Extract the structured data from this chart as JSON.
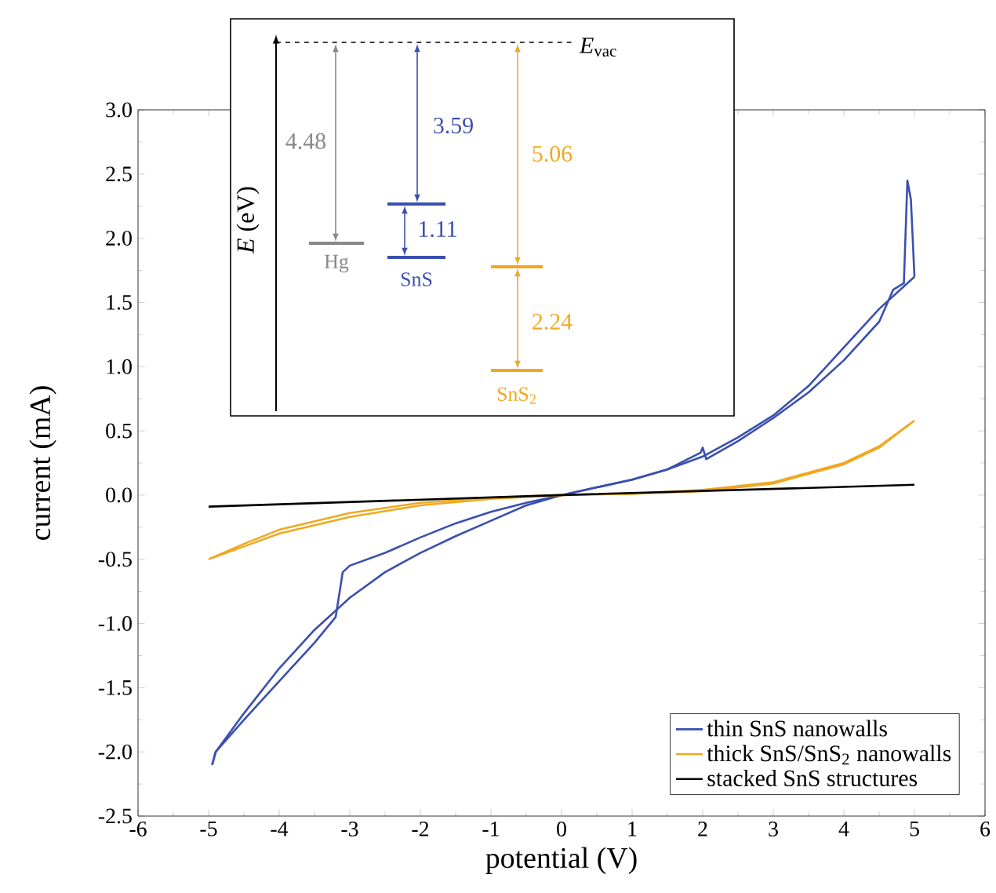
{
  "chart_data": [
    {
      "type": "line",
      "xlabel": "potential (V)",
      "ylabel": "current (mA)",
      "xlim": [
        -6,
        6
      ],
      "xticks": [
        -6,
        -5,
        -4,
        -3,
        -2,
        -1,
        0,
        1,
        2,
        3,
        4,
        5,
        6
      ],
      "ylim": [
        -2.5,
        3.0
      ],
      "yticks": [
        {
          "value": -2.5,
          "label": "-2.5"
        },
        {
          "value": -2.0,
          "label": "-2.0"
        },
        {
          "value": -1.5,
          "label": "-1.5"
        },
        {
          "value": -1.0,
          "label": "-1.0"
        },
        {
          "value": -0.5,
          "label": "-0.5"
        },
        {
          "value": 0,
          "label": "0.0"
        },
        {
          "value": 0.5,
          "label": "0.5"
        },
        {
          "value": 1.0,
          "label": "1.0"
        },
        {
          "value": 1.5,
          "label": "1.5"
        },
        {
          "value": 2.0,
          "label": "2.0"
        },
        {
          "value": 2.5,
          "label": "2.5"
        },
        {
          "value": 3.0,
          "label": "3.0"
        }
      ],
      "legend": "bottom right",
      "series": [
        {
          "name": "thin SnS nanowalls",
          "color": "#3a4fb0",
          "x": [
            -4.95,
            -4.9,
            -4.5,
            -4,
            -3.5,
            -3.2,
            -3.1,
            -3,
            -2.5,
            -2,
            -1.5,
            -1,
            -0.5,
            0,
            0.5,
            1,
            1.5,
            1.97,
            2,
            2.05,
            2.5,
            3,
            3.5,
            4,
            4.5,
            4.7,
            4.85,
            4.9,
            4.95,
            5
          ],
          "values": [
            -2.1,
            -2.0,
            -1.75,
            -1.45,
            -1.15,
            -0.95,
            -0.6,
            -0.55,
            -0.45,
            -0.33,
            -0.22,
            -0.13,
            -0.06,
            0,
            0.06,
            0.12,
            0.2,
            0.33,
            0.37,
            0.28,
            0.42,
            0.6,
            0.8,
            1.05,
            1.35,
            1.6,
            1.65,
            2.45,
            2.3,
            1.7
          ]
        },
        {
          "color": "#3a4fb0",
          "x": [
            -4.95,
            -4.9,
            -4.5,
            -4,
            -3.5,
            -3,
            -2.5,
            -2,
            -1.5,
            -1,
            -0.5,
            0,
            0.5,
            1,
            1.5,
            2,
            2.5,
            3,
            3.5,
            4,
            4.5,
            5
          ],
          "values": [
            -2.1,
            -2.0,
            -1.7,
            -1.35,
            -1.05,
            -0.8,
            -0.6,
            -0.45,
            -0.32,
            -0.2,
            -0.08,
            0,
            0.06,
            0.12,
            0.2,
            0.3,
            0.45,
            0.62,
            0.85,
            1.15,
            1.45,
            1.7
          ]
        },
        {
          "name": "thick SnS/SnS$_{2}$ nanowalls",
          "color": "#f0a820",
          "x": [
            -5,
            -4.5,
            -4,
            -3,
            -2,
            -1,
            0,
            1,
            2,
            3,
            4,
            4.5,
            5
          ],
          "values": [
            -0.5,
            -0.38,
            -0.27,
            -0.14,
            -0.06,
            -0.02,
            0,
            0.01,
            0.04,
            0.1,
            0.25,
            0.38,
            0.58
          ]
        },
        {
          "color": "#f0a820",
          "x": [
            -4.95,
            -4.5,
            -4,
            -3,
            -2,
            -1,
            0,
            1,
            2,
            3,
            4,
            4.5,
            4.95
          ],
          "values": [
            -0.49,
            -0.4,
            -0.3,
            -0.17,
            -0.08,
            -0.03,
            0,
            0.01,
            0.03,
            0.09,
            0.24,
            0.37,
            0.56
          ]
        },
        {
          "name": "stacked SnS structures",
          "color": "#000000",
          "x": [
            -5,
            0,
            5
          ],
          "values": [
            -0.09,
            0,
            0.08
          ]
        }
      ]
    },
    {
      "type": "other",
      "ylabel": "*E* (eV)",
      "categories": [
        "Hg",
        "SnS",
        "SnS$_{2}$"
      ],
      "colors": [
        "#888888",
        "#3a4fb0",
        "#f0a820"
      ],
      "annotations": [
        "*E*$_{vac}$",
        "4.48",
        "3.59",
        "1.11",
        "5.06",
        "2.24"
      ]
    }
  ]
}
